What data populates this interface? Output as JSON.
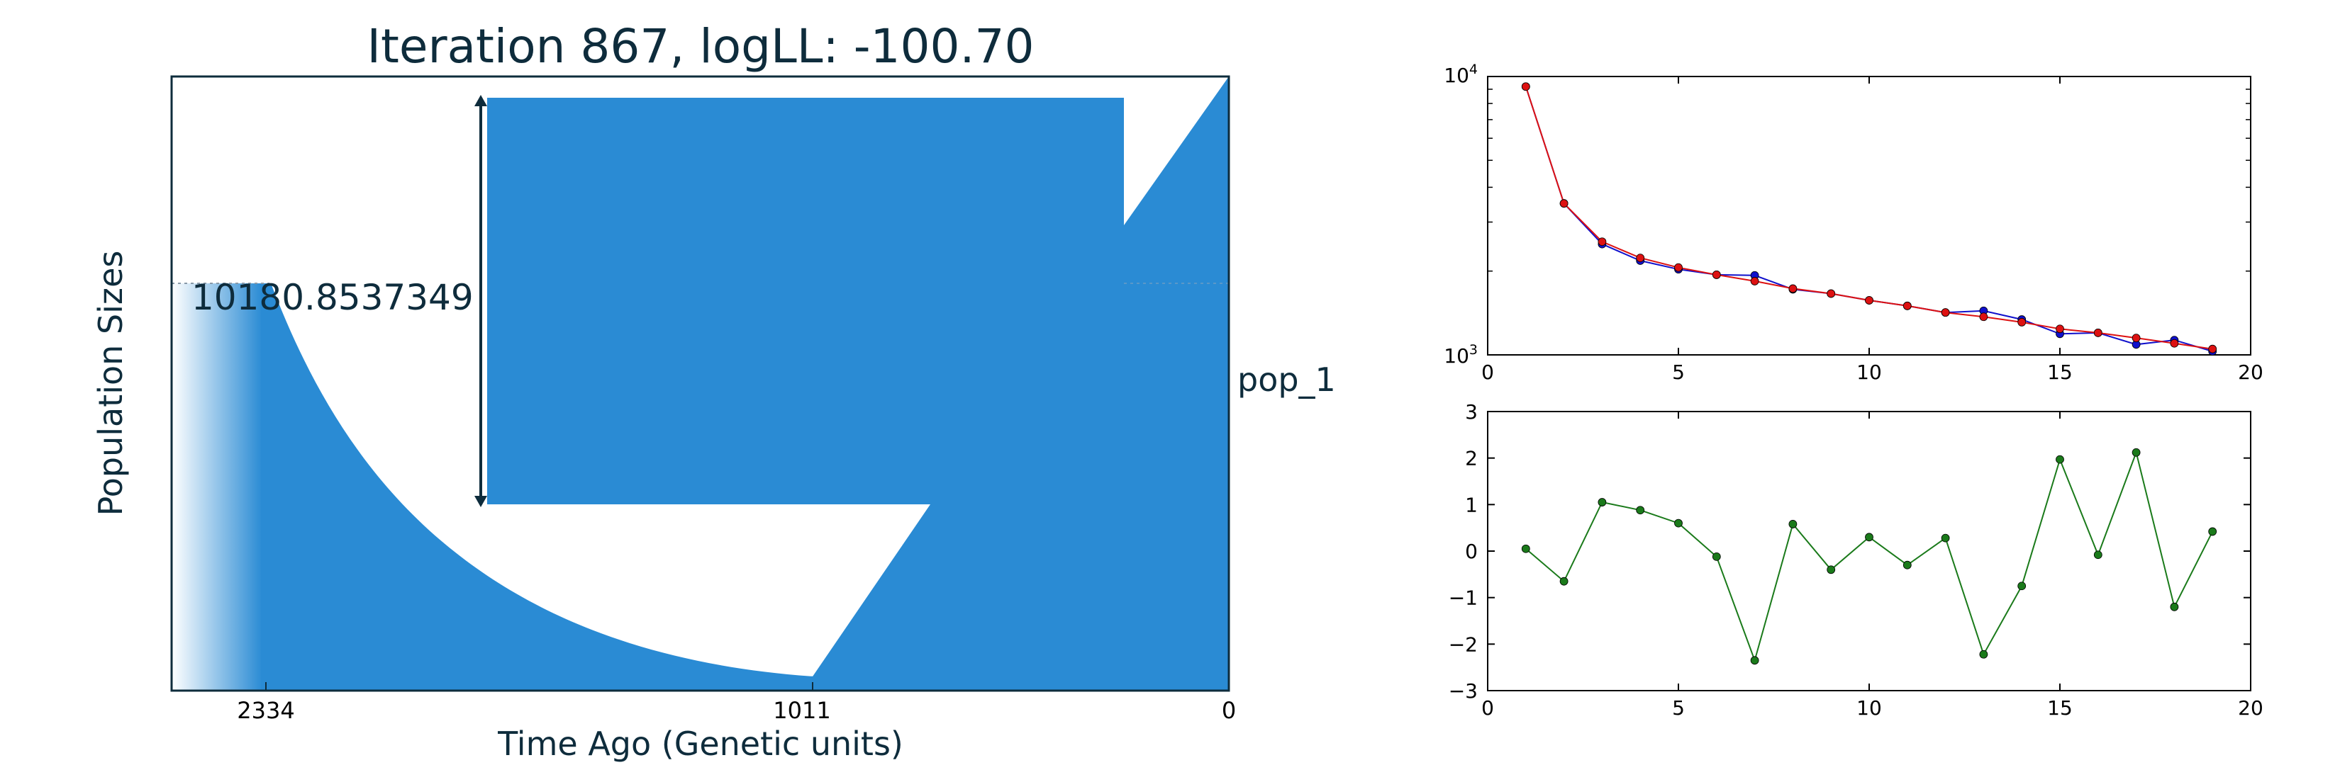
{
  "colors": {
    "pop_fill": "#2a8bd4",
    "text": "#0e2c3c",
    "axis": "#000000",
    "series_blue": "#1010cc",
    "series_red": "#dd1111",
    "series_green": "#1a7a1a",
    "frame_dark": "#0e2c3c"
  },
  "chart_data": [
    {
      "type": "area",
      "title": "Iteration 867, logLL:    -100.70",
      "xlabel": "Time Ago (Genetic units)",
      "ylabel": "Population Sizes",
      "x_ticks": [
        "2334",
        "1011",
        "0"
      ],
      "annotation": "10180.8537349",
      "population_label": "pop_1"
    },
    {
      "type": "line",
      "scale": "log",
      "xlim": [
        0,
        20
      ],
      "ylim": [
        1000,
        10000
      ],
      "x_ticks": [
        0,
        5,
        10,
        15,
        20
      ],
      "y_tick_labels": [
        {
          "value": 10000,
          "base": "10",
          "exp": "4"
        },
        {
          "value": 1000,
          "base": "10",
          "exp": "3"
        }
      ],
      "x": [
        1,
        2,
        3,
        4,
        5,
        6,
        7,
        8,
        9,
        10,
        11,
        12,
        13,
        14,
        15,
        16,
        17,
        18,
        19
      ],
      "series": [
        {
          "color": "#1010cc",
          "values": [
            9200,
            3500,
            2500,
            2180,
            2030,
            1940,
            1930,
            1720,
            1660,
            1570,
            1500,
            1420,
            1440,
            1340,
            1190,
            1200,
            1090,
            1130,
            1030
          ]
        },
        {
          "color": "#dd1111",
          "values": [
            9200,
            3500,
            2550,
            2230,
            2060,
            1940,
            1840,
            1730,
            1660,
            1570,
            1500,
            1420,
            1370,
            1310,
            1240,
            1200,
            1150,
            1100,
            1050
          ]
        }
      ]
    },
    {
      "type": "line",
      "xlim": [
        0,
        20
      ],
      "ylim": [
        -3,
        3
      ],
      "x_ticks": [
        0,
        5,
        10,
        15,
        20
      ],
      "y_ticks": [
        3,
        2,
        1,
        0,
        -1,
        -2,
        -3
      ],
      "x": [
        1,
        2,
        3,
        4,
        5,
        6,
        7,
        8,
        9,
        10,
        11,
        12,
        13,
        14,
        15,
        16,
        17,
        18,
        19
      ],
      "series": [
        {
          "color": "#1a7a1a",
          "values": [
            0.05,
            -0.65,
            1.05,
            0.88,
            0.6,
            -0.12,
            -2.35,
            0.58,
            -0.4,
            0.3,
            -0.3,
            0.28,
            -2.22,
            -0.75,
            1.97,
            -0.08,
            2.12,
            -1.2,
            0.42
          ]
        }
      ]
    }
  ]
}
